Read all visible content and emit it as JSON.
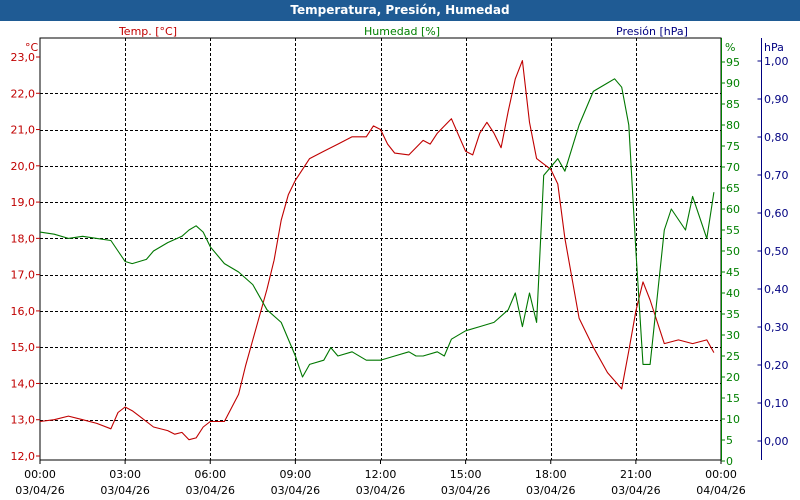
{
  "window": {
    "title": "Temperatura, Presión, Humedad"
  },
  "chart_data": {
    "type": "line",
    "title": "Temperatura, Presión, Humedad",
    "axes": {
      "temp": {
        "label": "Temp. [°C]",
        "unit": "°C",
        "range": [
          12.0,
          23.0
        ],
        "ticks": [
          "12,0",
          "13,0",
          "14,0",
          "15,0",
          "16,0",
          "17,0",
          "18,0",
          "19,0",
          "20,0",
          "21,0",
          "22,0",
          "23,0"
        ],
        "color": "#c00000"
      },
      "hum": {
        "label": "Humedad [%]",
        "unit": "%",
        "range": [
          0,
          95
        ],
        "ticks": [
          "0",
          "5",
          "10",
          "15",
          "20",
          "25",
          "30",
          "35",
          "40",
          "45",
          "50",
          "55",
          "60",
          "65",
          "70",
          "75",
          "80",
          "85",
          "90",
          "95"
        ],
        "color": "#008000"
      },
      "pres": {
        "label": "Presión [hPa]",
        "unit": "hPa",
        "range": [
          -0.05,
          1.0
        ],
        "ticks": [
          "0,00",
          "0,10",
          "0,20",
          "0,30",
          "0,40",
          "0,50",
          "0,60",
          "0,70",
          "0,80",
          "0,90",
          "1,00"
        ],
        "color": "#000080"
      },
      "x": {
        "range_hours": [
          0,
          24
        ],
        "ticks": [
          {
            "time": "00:00",
            "date": "03/04/26"
          },
          {
            "time": "03:00",
            "date": "03/04/26"
          },
          {
            "time": "06:00",
            "date": "03/04/26"
          },
          {
            "time": "09:00",
            "date": "03/04/26"
          },
          {
            "time": "12:00",
            "date": "03/04/26"
          },
          {
            "time": "15:00",
            "date": "03/04/26"
          },
          {
            "time": "18:00",
            "date": "03/04/26"
          },
          {
            "time": "21:00",
            "date": "03/04/26"
          },
          {
            "time": "00:00",
            "date": "04/04/26"
          }
        ]
      }
    },
    "grid": true,
    "series": [
      {
        "name": "Temp. [°C]",
        "axis": "temp",
        "color": "#c00000",
        "x": [
          0,
          0.5,
          1.0,
          1.5,
          2.0,
          2.5,
          2.75,
          3.0,
          3.25,
          3.5,
          4.0,
          4.5,
          4.75,
          5.0,
          5.25,
          5.5,
          5.75,
          6.0,
          6.5,
          7.0,
          7.25,
          7.5,
          7.75,
          8.0,
          8.25,
          8.5,
          8.75,
          9.0,
          9.5,
          10.0,
          10.5,
          11.0,
          11.5,
          11.75,
          12.0,
          12.25,
          12.5,
          13.0,
          13.5,
          13.75,
          14.0,
          14.5,
          15.0,
          15.25,
          15.5,
          15.75,
          16.0,
          16.25,
          16.5,
          16.75,
          17.0,
          17.25,
          17.5,
          18.0,
          18.25,
          18.5,
          19.0,
          19.5,
          20.0,
          20.5,
          20.75,
          21.0,
          21.25,
          21.5,
          22.0,
          22.5,
          23.0,
          23.5,
          23.75
        ],
        "y": [
          12.95,
          13.0,
          13.1,
          13.0,
          12.9,
          12.75,
          13.2,
          13.35,
          13.25,
          13.1,
          12.8,
          12.7,
          12.6,
          12.65,
          12.45,
          12.5,
          12.8,
          12.95,
          12.95,
          13.7,
          14.5,
          15.2,
          15.9,
          16.6,
          17.4,
          18.5,
          19.2,
          19.6,
          20.2,
          20.4,
          20.6,
          20.8,
          20.8,
          21.1,
          21.0,
          20.6,
          20.35,
          20.3,
          20.7,
          20.6,
          20.9,
          21.3,
          20.4,
          20.3,
          20.9,
          21.2,
          20.9,
          20.5,
          21.5,
          22.4,
          22.9,
          21.2,
          20.2,
          19.9,
          19.5,
          18.0,
          15.8,
          15.0,
          14.3,
          13.85,
          14.9,
          16.0,
          16.8,
          16.3,
          15.1,
          15.2,
          15.1,
          15.2,
          14.85
        ]
      },
      {
        "name": "Humedad [%]",
        "axis": "hum",
        "color": "#007700",
        "x": [
          0,
          0.5,
          1.0,
          1.5,
          2.0,
          2.5,
          2.75,
          3.0,
          3.25,
          3.5,
          3.75,
          4.0,
          4.5,
          5.0,
          5.25,
          5.5,
          5.75,
          6.0,
          6.5,
          7.0,
          7.5,
          8.0,
          8.5,
          9.0,
          9.25,
          9.5,
          10.0,
          10.25,
          10.5,
          11.0,
          11.5,
          12.0,
          12.5,
          13.0,
          13.25,
          13.5,
          14.0,
          14.25,
          14.5,
          15.0,
          15.5,
          16.0,
          16.5,
          16.75,
          17.0,
          17.25,
          17.5,
          17.75,
          18.0,
          18.25,
          18.5,
          19.0,
          19.5,
          20.0,
          20.25,
          20.5,
          20.75,
          21.0,
          21.25,
          21.5,
          22.0,
          22.25,
          22.75,
          23.0,
          23.25,
          23.5,
          23.75
        ],
        "y": [
          54.5,
          54,
          53,
          53.5,
          53,
          52.5,
          50,
          47.5,
          47,
          47.5,
          48,
          50,
          52,
          53.5,
          55,
          56,
          54.5,
          51,
          47,
          45,
          42,
          36,
          33,
          25,
          20,
          23,
          24,
          27,
          25,
          26,
          24,
          24,
          25,
          26,
          25,
          25,
          26,
          25,
          29,
          31,
          32,
          33,
          36,
          40,
          32,
          40,
          33,
          68,
          70,
          72,
          69,
          80,
          88,
          90,
          91,
          89,
          80,
          50,
          23,
          23,
          55,
          60,
          55,
          63,
          58,
          53,
          64
        ]
      }
    ]
  }
}
